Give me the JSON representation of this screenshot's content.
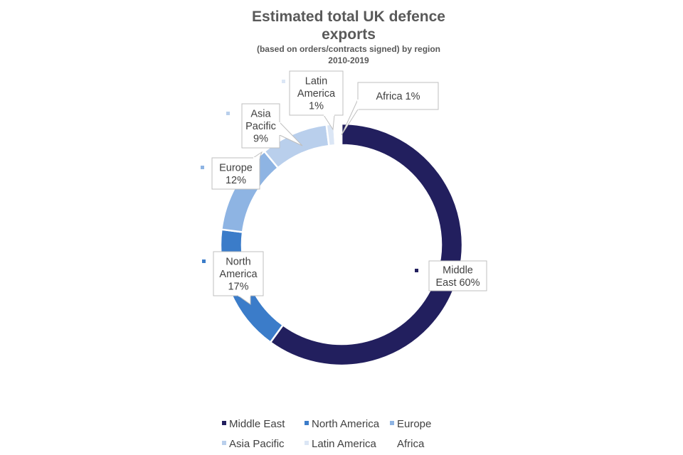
{
  "chart_data": {
    "type": "pie",
    "variant": "donut",
    "title": "Estimated total UK defence exports",
    "subtitle": "(based on orders/contracts signed) by region",
    "period": "2010-2019",
    "series": [
      {
        "name": "Middle East",
        "value": 60,
        "label": "Middle East 60%",
        "color": "#221f5e"
      },
      {
        "name": "North America",
        "value": 17,
        "label": "North America 17%",
        "color": "#3b7cc9"
      },
      {
        "name": "Europe",
        "value": 12,
        "label": "Europe 12%",
        "color": "#8eb4e3"
      },
      {
        "name": "Asia Pacific",
        "value": 9,
        "label": "Asia Pacific 9%",
        "color": "#b9cfec"
      },
      {
        "name": "Latin America",
        "value": 1,
        "label": "Latin America 1%",
        "color": "#dbe6f5"
      },
      {
        "name": "Africa",
        "value": 1,
        "label": "Africa 1%",
        "color": "#ffffff"
      }
    ],
    "legend_position": "bottom",
    "data_labels": "callouts"
  }
}
